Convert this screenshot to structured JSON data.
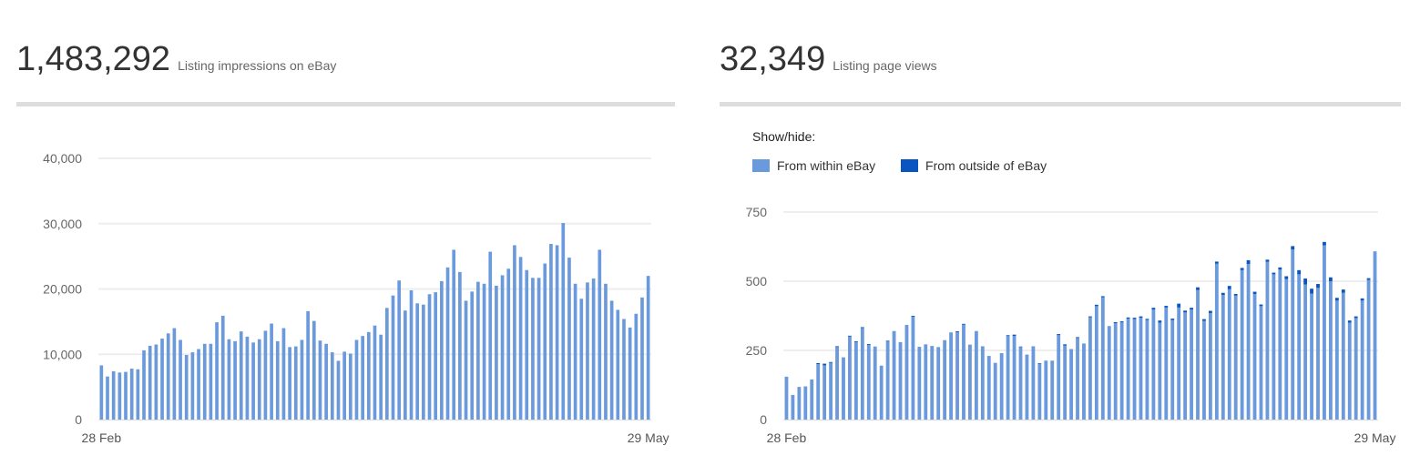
{
  "impressions": {
    "value": "1,483,292",
    "label": "Listing impressions on eBay"
  },
  "views": {
    "value": "32,349",
    "label": "Listing page views",
    "show_hide_label": "Show/hide:",
    "legend": [
      {
        "label": "From within eBay",
        "color": "#6a99dc"
      },
      {
        "label": "From outside of eBay",
        "color": "#0b55c1"
      }
    ]
  },
  "chart_data": [
    {
      "type": "bar",
      "title": "",
      "ylim": [
        0,
        40000
      ],
      "y_ticks": [
        "0",
        "10,000",
        "20,000",
        "30,000",
        "40,000"
      ],
      "y_tick_values": [
        0,
        10000,
        20000,
        30000,
        40000
      ],
      "x_tick_labels": [
        "28 Feb",
        "29 May"
      ],
      "grid": true,
      "series": [
        {
          "color": "#6a99dc",
          "values": [
            8300,
            6600,
            7400,
            7200,
            7300,
            7800,
            7700,
            10600,
            11300,
            11500,
            12400,
            13200,
            14000,
            12200,
            9900,
            10300,
            10800,
            11600,
            11600,
            14900,
            15900,
            12300,
            12000,
            13500,
            12700,
            11800,
            12300,
            13600,
            14700,
            12000,
            14000,
            11100,
            11200,
            12200,
            16600,
            15100,
            12100,
            11600,
            10300,
            9000,
            10400,
            10100,
            12200,
            12800,
            13400,
            14400,
            13000,
            17100,
            19000,
            21300,
            16700,
            19800,
            17800,
            17600,
            19200,
            19500,
            21200,
            23300,
            26000,
            22600,
            18200,
            19600,
            21100,
            20800,
            25700,
            20500,
            22100,
            23100,
            26700,
            24900,
            22900,
            21700,
            21700,
            23900,
            26900,
            26700,
            30100,
            24800,
            20800,
            18500,
            21000,
            21600,
            26000,
            20800,
            18200,
            16800,
            15400,
            14100,
            16200,
            18700,
            22000
          ]
        }
      ]
    },
    {
      "type": "bar",
      "title": "",
      "ylim": [
        0,
        750
      ],
      "y_ticks": [
        "0",
        "250",
        "500",
        "750"
      ],
      "y_tick_values": [
        0,
        250,
        500,
        750
      ],
      "x_tick_labels": [
        "28 Feb",
        "29 May"
      ],
      "grid": true,
      "stacked": true,
      "series": [
        {
          "name": "From within eBay",
          "color": "#6a99dc",
          "values": [
            155,
            89,
            118,
            120,
            145,
            200,
            196,
            205,
            262,
            225,
            300,
            280,
            331,
            270,
            264,
            195,
            282,
            320,
            280,
            342,
            372,
            263,
            272,
            266,
            262,
            287,
            315,
            316,
            343,
            271,
            320,
            265,
            230,
            205,
            240,
            302,
            302,
            262,
            235,
            265,
            202,
            213,
            213,
            305,
            268,
            255,
            295,
            275,
            370,
            410,
            442,
            335,
            348,
            351,
            365,
            363,
            368,
            360,
            398,
            350,
            405,
            360,
            405,
            387,
            398,
            468,
            357,
            385,
            563,
            450,
            471,
            448,
            540,
            562,
            454,
            410,
            570,
            525,
            542,
            508,
            615,
            525,
            488,
            455,
            476,
            630,
            500,
            430,
            458,
            350,
            367,
            430,
            505,
            608
          ]
        },
        {
          "name": "From outside of eBay",
          "color": "#0b55c1",
          "values": [
            0,
            0,
            0,
            0,
            0,
            4,
            6,
            3,
            3,
            0,
            3,
            3,
            3,
            3,
            0,
            0,
            3,
            0,
            0,
            0,
            3,
            0,
            0,
            0,
            0,
            0,
            0,
            3,
            3,
            0,
            0,
            0,
            0,
            0,
            0,
            3,
            5,
            2,
            0,
            0,
            2,
            0,
            0,
            4,
            4,
            0,
            3,
            0,
            3,
            5,
            4,
            2,
            4,
            4,
            4,
            5,
            5,
            4,
            6,
            8,
            6,
            5,
            14,
            7,
            6,
            10,
            6,
            8,
            8,
            8,
            12,
            6,
            8,
            14,
            8,
            6,
            8,
            6,
            8,
            10,
            12,
            15,
            22,
            18,
            14,
            12,
            14,
            10,
            12,
            8,
            6,
            8,
            6,
            0
          ]
        }
      ]
    }
  ]
}
